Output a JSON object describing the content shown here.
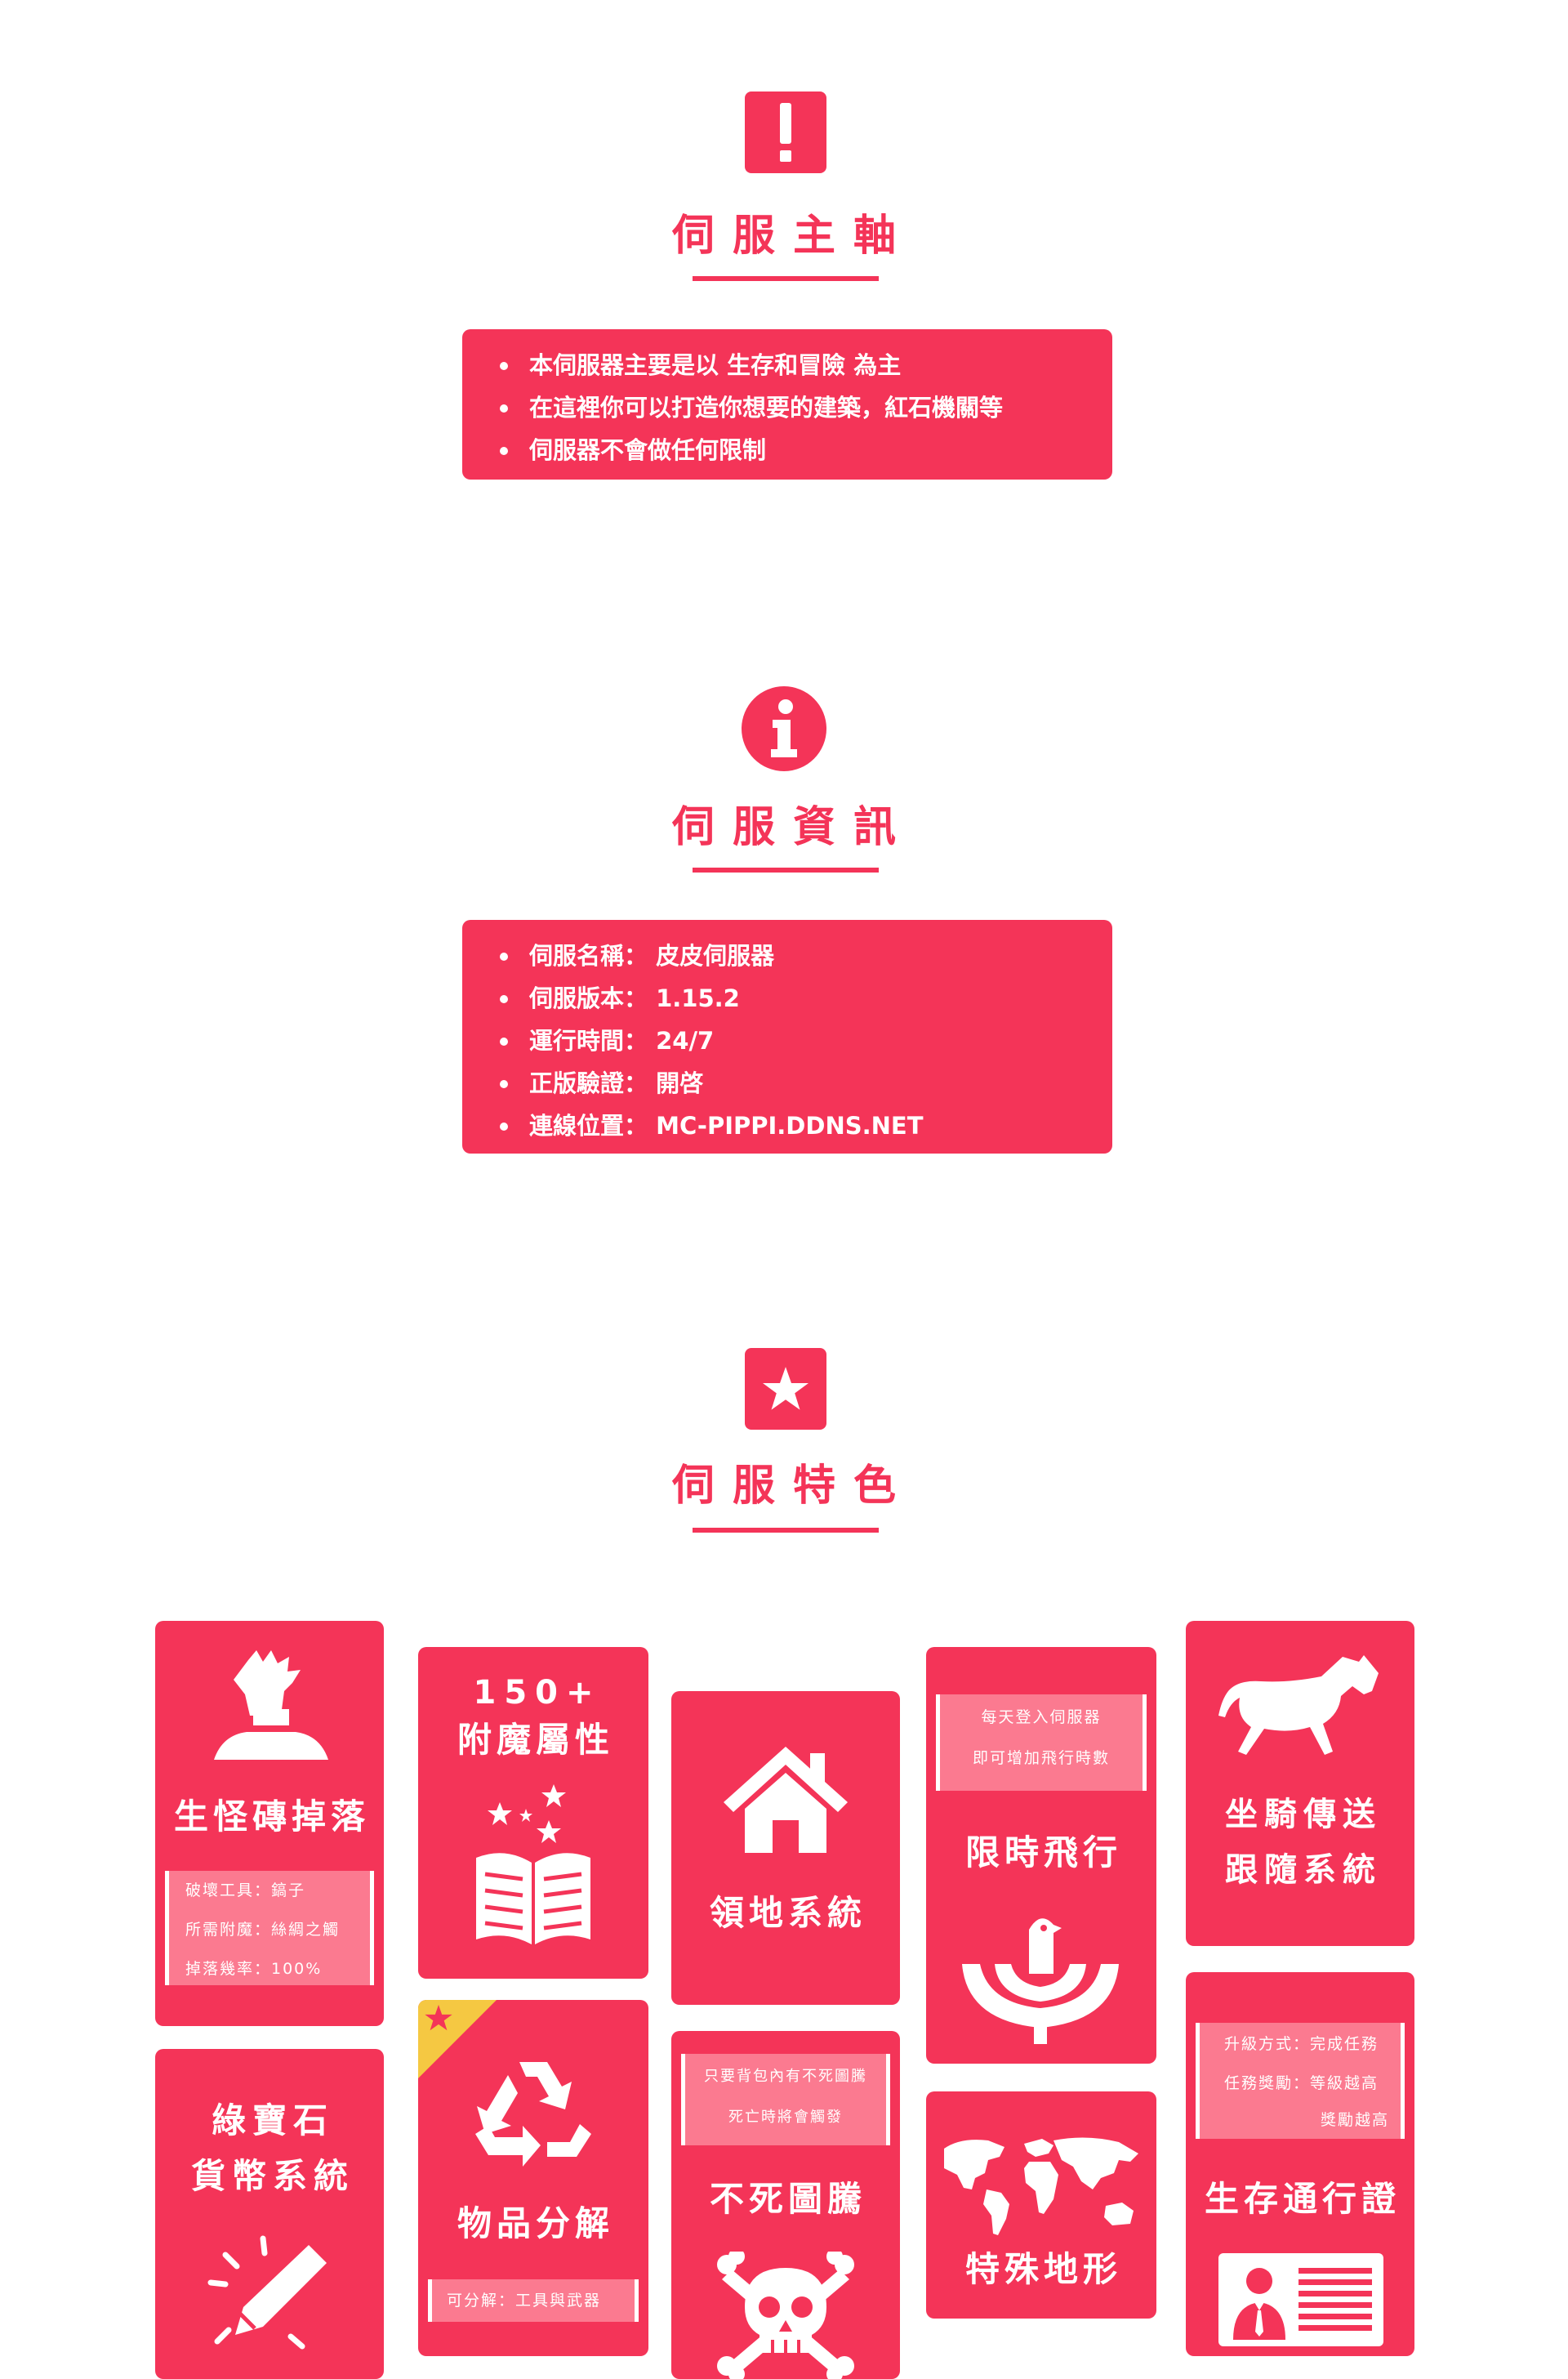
{
  "sections": {
    "axis": {
      "title": "伺服主軸",
      "icon": "exclamation-icon",
      "items": [
        "本伺服器主要是以 生存和冒險 為主",
        "在這裡你可以打造你想要的建築，紅石機關等",
        "伺服器不會做任何限制"
      ]
    },
    "info": {
      "title": "伺服資訊",
      "icon": "info-icon",
      "items": [
        "伺服名稱： 皮皮伺服器",
        "伺服版本： 1.15.2",
        "運行時間： 24/7",
        "正版驗證： 開啓",
        "連線位置： MC-PIPPI.DDNS.NET"
      ]
    },
    "features": {
      "title": "伺服特色",
      "icon": "star-icon"
    }
  },
  "cards": {
    "spawner": {
      "title": "生怪磚掉落",
      "icon": "zombie-hand-icon",
      "notes": [
        "破壞工具：鎬子",
        "所需附魔：絲綢之觸",
        "掉落幾率：100%"
      ]
    },
    "enchant": {
      "count": "150+",
      "title": "附魔屬性",
      "icon": "spell-book-icon"
    },
    "territory": {
      "title": "領地系統",
      "icon": "house-icon"
    },
    "flight": {
      "notes": [
        "每天登入伺服器",
        "即可增加飛行時數"
      ],
      "title": "限時飛行",
      "icon": "bird-icon"
    },
    "mount": {
      "title_line1": "坐騎傳送",
      "title_line2": "跟隨系統",
      "icon": "horse-icon"
    },
    "emerald": {
      "title_line1": "綠寶石",
      "title_line2": "貨幣系統",
      "icon": "pencil-icon"
    },
    "salvage": {
      "title": "物品分解",
      "icon": "recycle-icon",
      "notes": [
        "可分解：工具與武器"
      ],
      "ribbon_icon": "star-icon"
    },
    "totem": {
      "notes": [
        "只要背包內有不死圖騰",
        "死亡時將會觸發"
      ],
      "title": "不死圖騰",
      "icon": "skull-icon"
    },
    "terrain": {
      "title": "特殊地形",
      "icon": "world-map-icon"
    },
    "pass": {
      "notes": [
        "升級方式：完成任務",
        "任務獎勵：等級越高",
        "獎勵越高"
      ],
      "title": "生存通行證",
      "icon": "id-card-icon"
    }
  },
  "colors": {
    "accent": "#f43458",
    "note_bg": "#fb7a90",
    "ribbon": "#f5c842"
  }
}
